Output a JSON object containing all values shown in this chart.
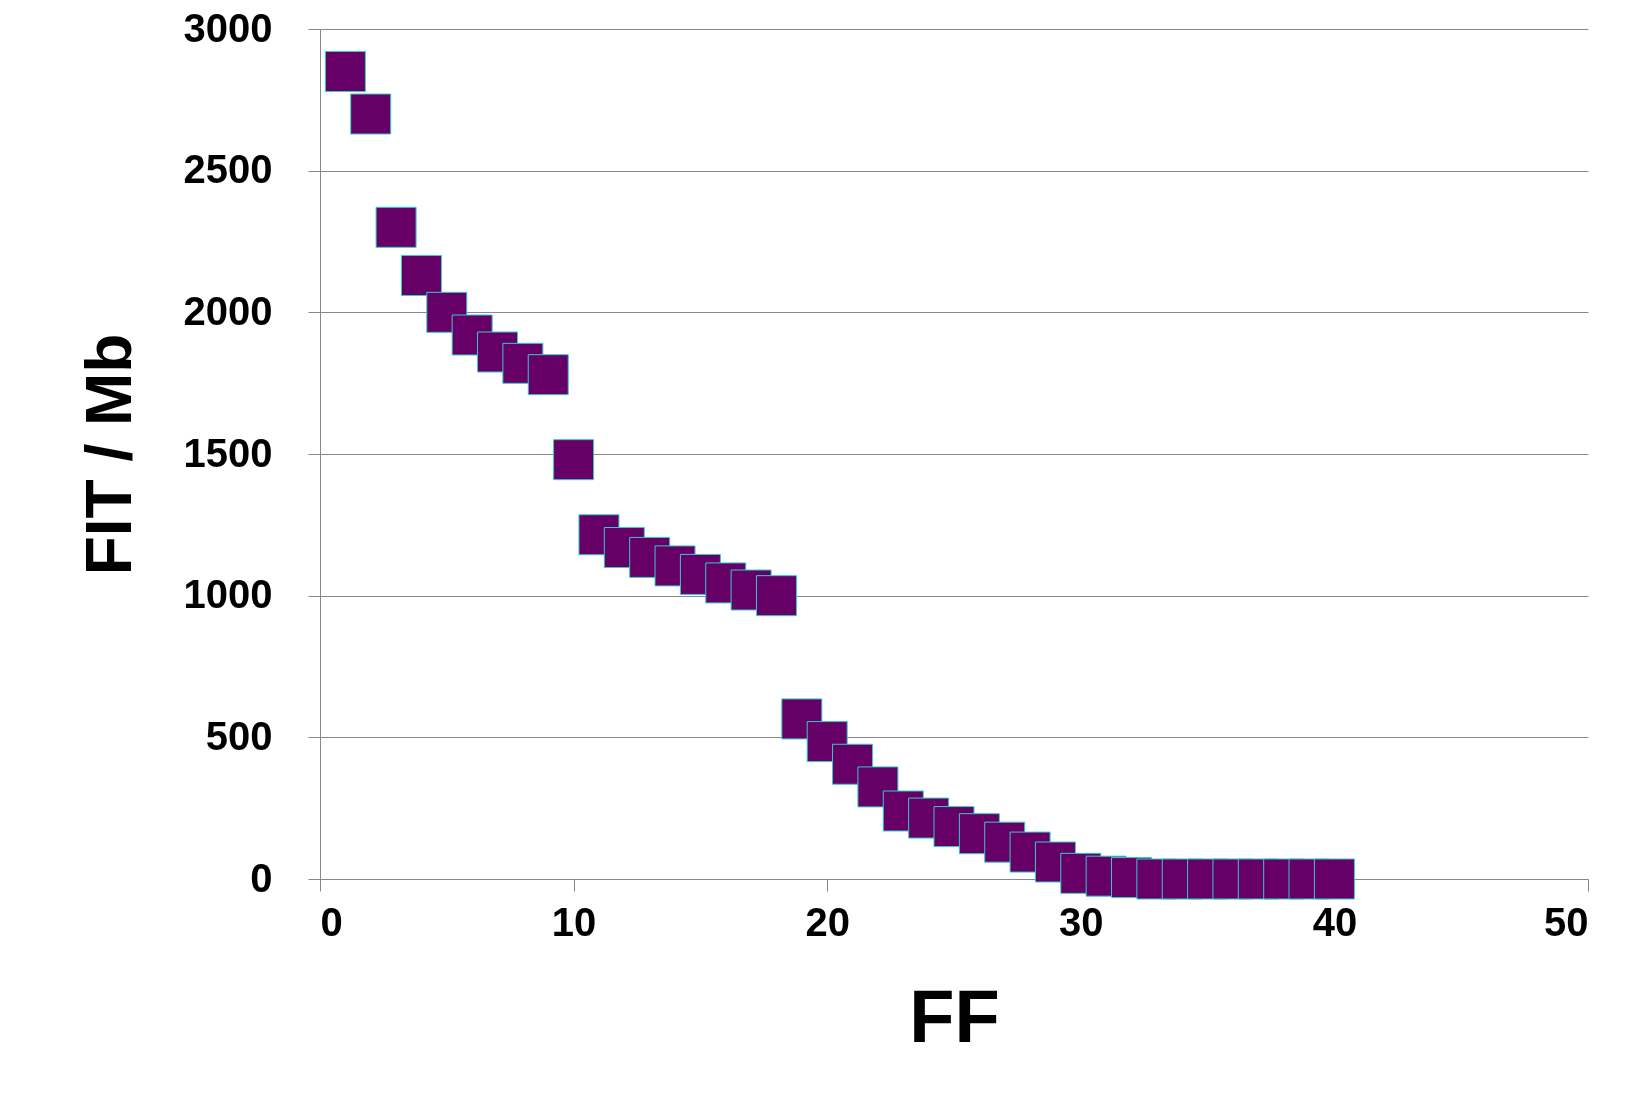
{
  "chart_data": {
    "type": "scatter",
    "xlabel": "FF",
    "ylabel": "FIT / Mb",
    "x": [
      1,
      2,
      3,
      4,
      5,
      6,
      7,
      8,
      9,
      10,
      11,
      12,
      13,
      14,
      15,
      16,
      17,
      18,
      19,
      20,
      21,
      22,
      23,
      24,
      25,
      26,
      27,
      28,
      29,
      30,
      31,
      32,
      33,
      34,
      35,
      36,
      37,
      38,
      39,
      40
    ],
    "series": [
      {
        "color": "#660066",
        "values": [
          2850,
          2700,
          2300,
          2130,
          2000,
          1920,
          1860,
          1820,
          1780,
          1480,
          1215,
          1170,
          1135,
          1105,
          1075,
          1045,
          1020,
          1000,
          565,
          485,
          405,
          325,
          240,
          215,
          185,
          160,
          130,
          95,
          60,
          20,
          10,
          5,
          0,
          0,
          0,
          0,
          0,
          0,
          0,
          0
        ]
      }
    ],
    "xlim": [
      0,
      50
    ],
    "xticks": [
      0,
      10,
      20,
      30,
      40,
      50
    ],
    "ylim": [
      0,
      3000
    ],
    "yticks": [
      0,
      500,
      1000,
      1500,
      2000,
      2500,
      3000
    ],
    "grid": "y",
    "marker": "square"
  }
}
